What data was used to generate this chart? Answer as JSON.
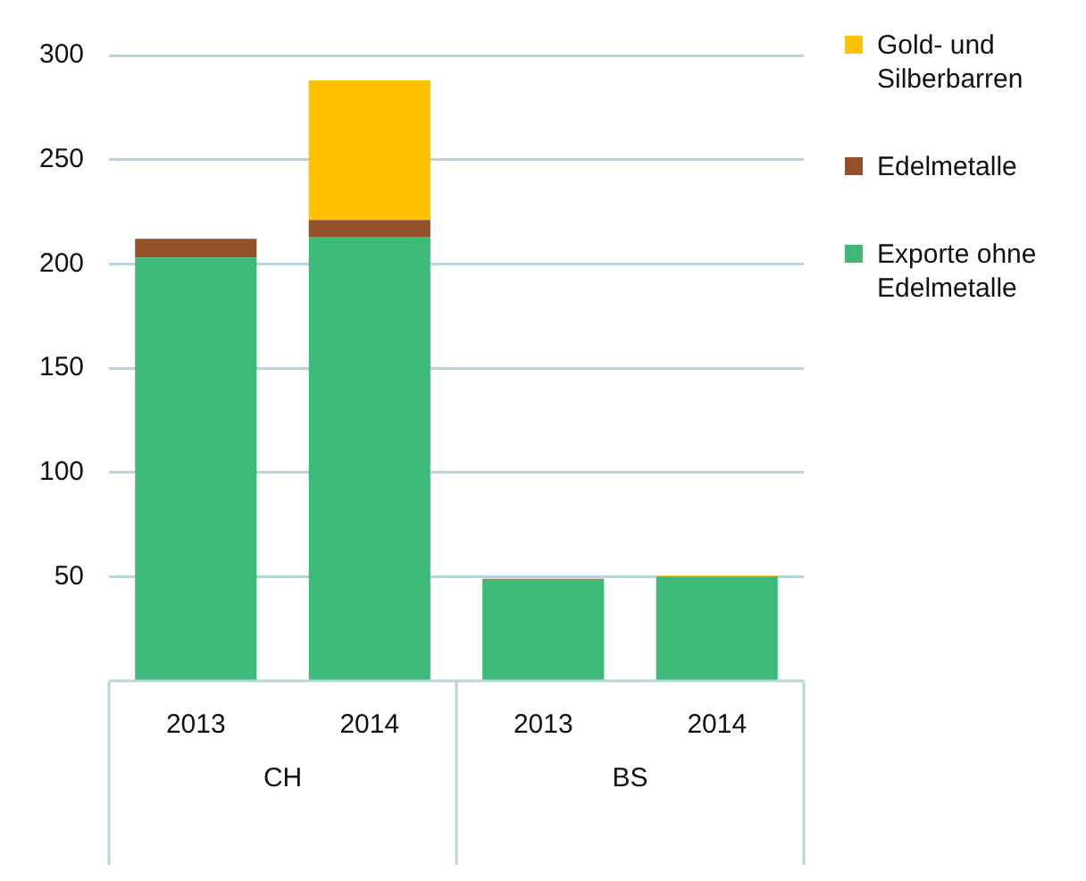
{
  "chart_data": {
    "type": "bar",
    "stacked": true,
    "categories": [
      "2013",
      "2014",
      "2013",
      "2014"
    ],
    "series": [
      {
        "name": "Exporte ohne Edelmetalle",
        "color": "#3dba7a",
        "values": [
          203,
          213,
          48.5,
          50
        ]
      },
      {
        "name": "Edelmetalle",
        "color": "#93512a",
        "values": [
          9,
          8,
          0.5,
          0
        ]
      },
      {
        "name": "Gold- und Silberbarren",
        "color": "#ffc000",
        "values": [
          0,
          67,
          0,
          0.5
        ]
      }
    ],
    "ylim": [
      0,
      300
    ],
    "yticks": [
      50,
      100,
      150,
      200,
      250,
      300
    ],
    "grid": "y",
    "legend": "right",
    "annotations": [
      "CH",
      "BS"
    ]
  }
}
